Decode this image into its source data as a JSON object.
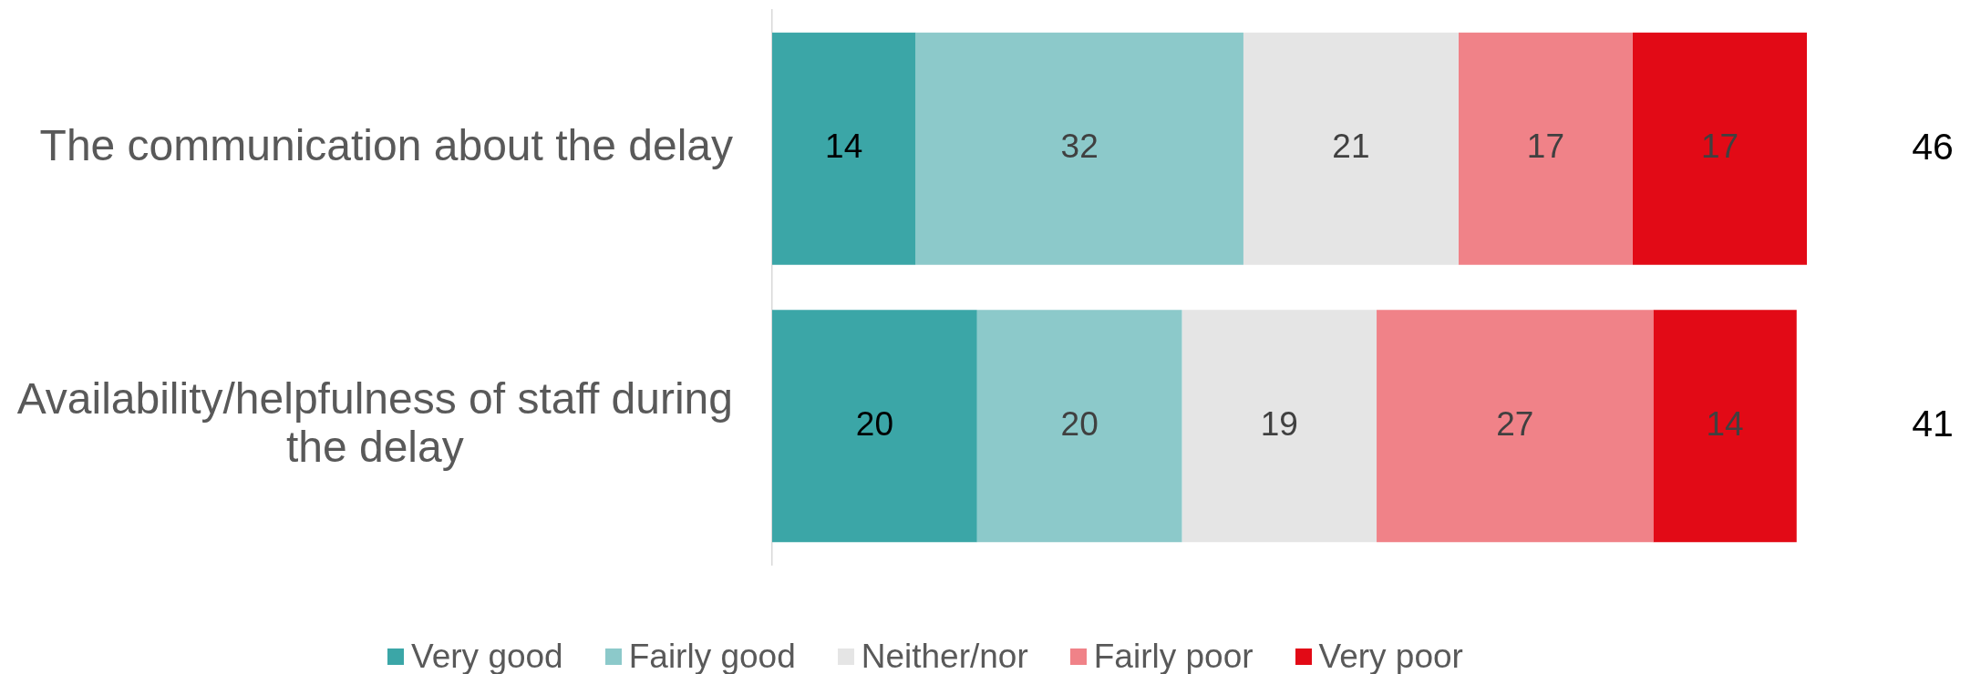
{
  "chart_data": {
    "type": "bar",
    "orientation": "horizontal",
    "stacked": true,
    "data_labels": true,
    "legend": "bottom",
    "categories": [
      "The communication about the delay",
      "Availability/helpfulness of staff during the delay"
    ],
    "series": [
      {
        "name": "Very good",
        "color": "#3ba6a7",
        "values": [
          14,
          20
        ]
      },
      {
        "name": "Fairly good",
        "color": "#8cc9ca",
        "values": [
          32,
          20
        ]
      },
      {
        "name": "Neither/nor",
        "color": "#e5e5e5",
        "values": [
          21,
          19
        ]
      },
      {
        "name": "Fairly poor",
        "color": "#f08288",
        "values": [
          17,
          27
        ]
      },
      {
        "name": "Very poor",
        "color": "#e20a16",
        "values": [
          17,
          14
        ]
      }
    ],
    "annotations": [
      "46",
      "41"
    ]
  }
}
